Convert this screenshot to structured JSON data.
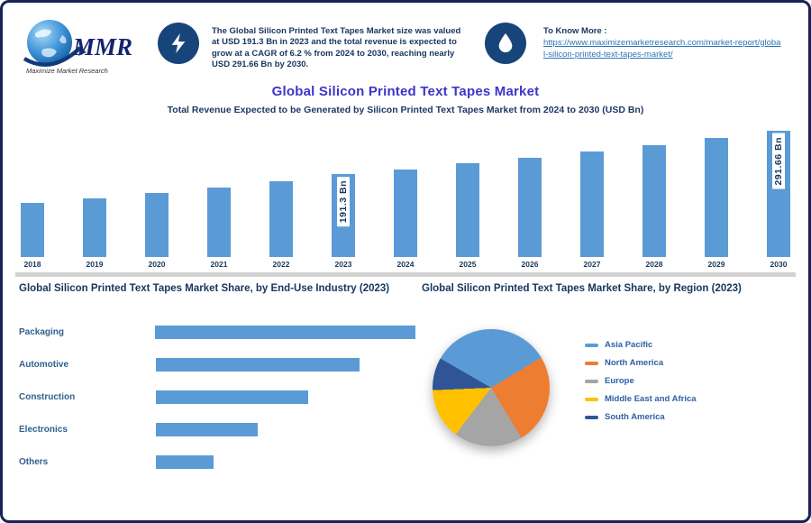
{
  "logo": {
    "text": "MMR",
    "tagline": "Maximize Market Research"
  },
  "header": {
    "summary": "The Global Silicon Printed Text Tapes Market size was valued at USD 191.3 Bn in 2023 and the total revenue is expected to grow at a CAGR of 6.2 % from 2024 to 2030, reaching nearly USD 291.66 Bn by 2030.",
    "link_label": "To Know More :",
    "link_url": "https://www.maximizemarketresearch.com/market-report/global-silicon-printed-text-tapes-market/"
  },
  "title": "Global Silicon Printed Text Tapes Market",
  "subtitle": "Total Revenue Expected to be Generated by Silicon Printed Text Tapes Market from 2024 to 2030 (USD Bn)",
  "sections": {
    "left_heading": "Global Silicon Printed Text Tapes Market Share, by End-Use Industry (2023)",
    "right_heading": "Global Silicon Printed Text Tapes Market Share, by Region (2023)"
  },
  "colors": {
    "accent_blue": "#5B9BD5",
    "navy": "#17365D",
    "badge_bg": "#17457A",
    "title_blue": "#3D35C9",
    "divider_gray": "#D2D2D2"
  },
  "chart_data": [
    {
      "type": "bar",
      "title": "Global Silicon Printed Text Tapes Market Revenue (USD Bn)",
      "categories": [
        "2018",
        "2019",
        "2020",
        "2021",
        "2022",
        "2023",
        "2024",
        "2025",
        "2026",
        "2027",
        "2028",
        "2029",
        "2030"
      ],
      "values": [
        125,
        136,
        148,
        161,
        176,
        191.3,
        203.2,
        215.8,
        229.2,
        243.4,
        258.5,
        274.5,
        291.66
      ],
      "unit": "USD Bn",
      "ylim": [
        0,
        300
      ],
      "bar_color": "#5B9BD5",
      "grid": false,
      "annotations": [
        {
          "category": "2023",
          "label": "191.3 Bn"
        },
        {
          "category": "2030",
          "label": "291.66 Bn"
        }
      ]
    },
    {
      "type": "bar",
      "orientation": "horizontal",
      "categories": [
        "Packaging",
        "Automotive",
        "Construction",
        "Electronics",
        "Others"
      ],
      "values": [
        36,
        28,
        21,
        14,
        8
      ],
      "unit": "%",
      "bar_color": "#5B9BD5"
    },
    {
      "type": "pie",
      "start_angle": 300,
      "legend_position": "right",
      "slices": [
        {
          "label": "Asia Pacific",
          "value": 33,
          "color": "#5B9BD5"
        },
        {
          "label": "North America",
          "value": 25,
          "color": "#ED7D31"
        },
        {
          "label": "Europe",
          "value": 19,
          "color": "#A5A5A5"
        },
        {
          "label": "Middle East and Africa",
          "value": 14,
          "color": "#FFC000"
        },
        {
          "label": "South America",
          "value": 9,
          "color": "#2F5597"
        }
      ]
    }
  ]
}
